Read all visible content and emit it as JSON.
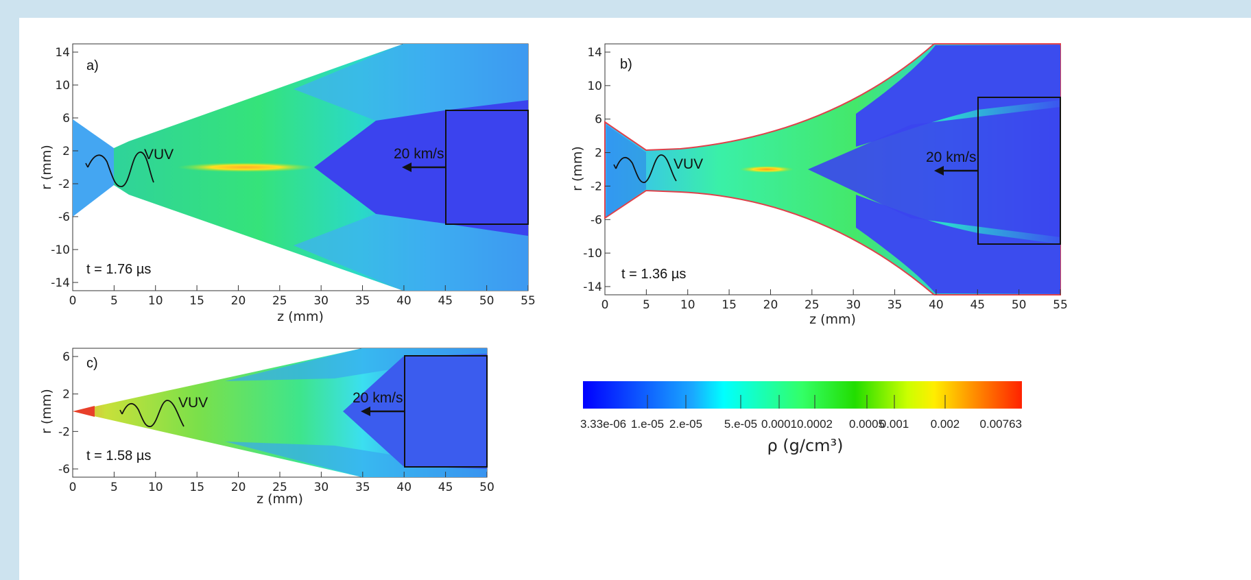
{
  "panels": [
    {
      "letter": "a)",
      "time": "t = 1.76 µs",
      "velocity": "20 km/s",
      "wave": "VUV",
      "xlabel": "z (mm)",
      "ylabel": "r (mm)",
      "xticks": [
        "0",
        "5",
        "10",
        "15",
        "20",
        "25",
        "30",
        "35",
        "40",
        "45",
        "50",
        "55"
      ],
      "yticks": [
        "14",
        "10",
        "6",
        "2",
        "-2",
        "-6",
        "-10",
        "-14"
      ]
    },
    {
      "letter": "b)",
      "time": "t = 1.36 µs",
      "velocity": "20 km/s",
      "wave": "VUV",
      "xlabel": "z (mm)",
      "ylabel": "r (mm)",
      "xticks": [
        "0",
        "5",
        "10",
        "15",
        "20",
        "25",
        "30",
        "35",
        "40",
        "45",
        "50",
        "55"
      ],
      "yticks": [
        "14",
        "10",
        "6",
        "2",
        "-2",
        "-6",
        "-10",
        "-14"
      ]
    },
    {
      "letter": "c)",
      "time": "t = 1.58 µs",
      "velocity": "20 km/s",
      "wave": "VUV",
      "xlabel": "z (mm)",
      "ylabel": "r (mm)",
      "xticks": [
        "0",
        "5",
        "10",
        "15",
        "20",
        "25",
        "30",
        "35",
        "40",
        "45",
        "50"
      ],
      "yticks": [
        "6",
        "2",
        "-2",
        "-6"
      ]
    }
  ],
  "colorbar": {
    "title": "ρ (g/cm³)",
    "ticks": [
      "3.33e-06",
      "1.e-05",
      "2.e-05",
      "5.e-05",
      "0.0001",
      "0.0002",
      "0.0005",
      "0.001",
      "0.002",
      "0.00763"
    ]
  }
}
